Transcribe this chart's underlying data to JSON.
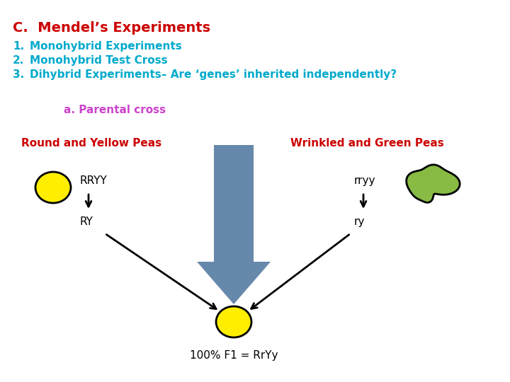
{
  "title": "C.  Mendel’s Experiments",
  "title_color": "#cc0000",
  "items": [
    {
      "num": "1.",
      "text": "Monohybrid Experiments"
    },
    {
      "num": "2.",
      "text": "Monohybrid Test Cross"
    },
    {
      "num": "3.",
      "text": "Dihybrid Experiments– Are ‘genes’ inherited independently?"
    }
  ],
  "items_color": "#00aacc",
  "subheading": "a. Parental cross",
  "subheading_color": "#cc44cc",
  "left_label": "Round and Yellow Peas",
  "right_label": "Wrinkled and Green Peas",
  "labels_color": "#cc0000",
  "left_genotype_top": "RRYY",
  "left_genotype_bottom": "RY",
  "right_genotype_top": "rryy",
  "right_genotype_bottom": "ry",
  "bottom_label": "100% F1 = RrYy",
  "genotype_color": "#000000",
  "big_arrow_color": "#6688aa",
  "yellow_pea_color": "#ffee00",
  "yellow_pea_edge": "#000000",
  "green_pea_color": "#88bb44",
  "green_pea_edge": "#000000",
  "background_color": "#ffffff",
  "title_fontsize": 14,
  "items_fontsize": 11,
  "subheading_fontsize": 11,
  "label_fontsize": 11,
  "genotype_fontsize": 11
}
